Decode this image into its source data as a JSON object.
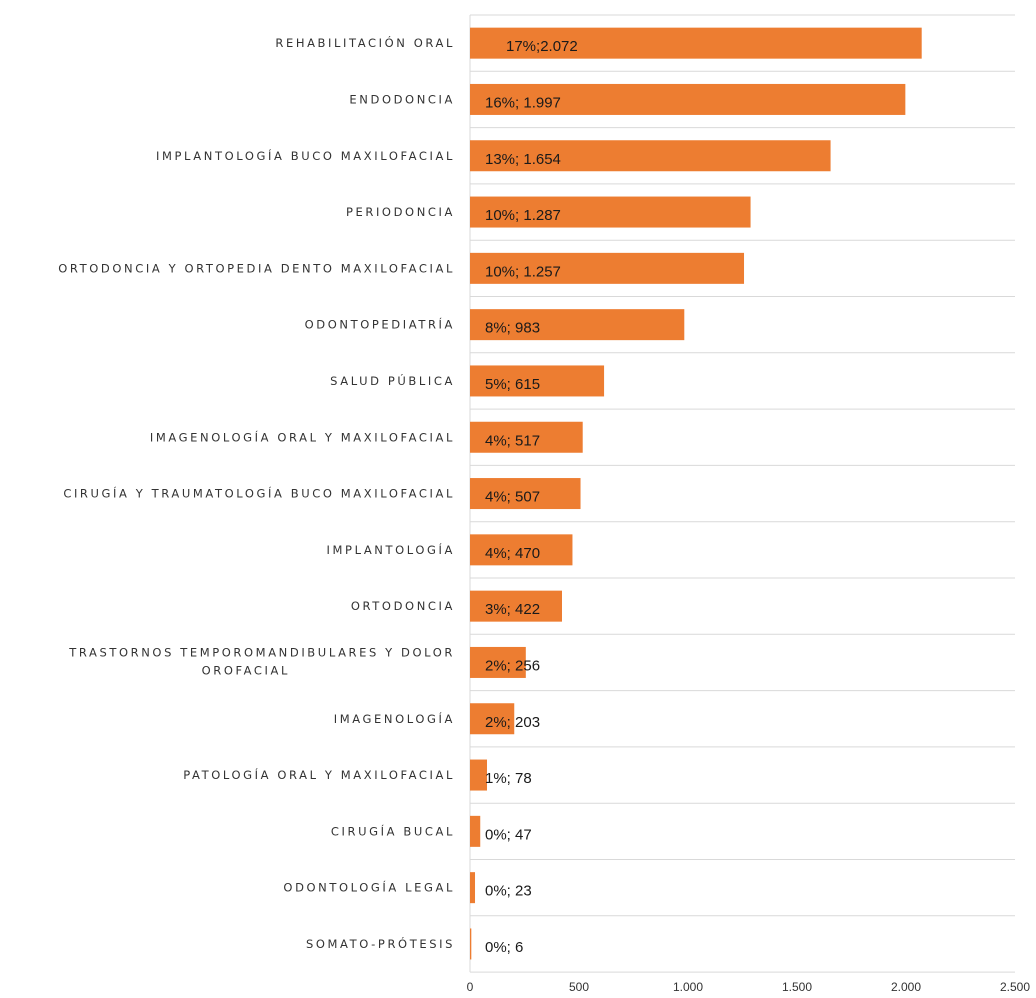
{
  "chart_data": {
    "type": "bar",
    "orientation": "horizontal",
    "title": "",
    "xlabel": "",
    "ylabel": "",
    "xlim": [
      0,
      2500
    ],
    "x_ticks": [
      0,
      500,
      1000,
      1500,
      2000,
      2500
    ],
    "x_tick_labels": [
      "0",
      "500",
      "1.000",
      "1.500",
      "2.000",
      "2.500"
    ],
    "grid": "horizontal",
    "legend": "none",
    "bar_color": "#ED7D31",
    "categories": [
      [
        "REHABILITACIÓN  ORAL"
      ],
      [
        "ENDODONCIA"
      ],
      [
        "IMPLANTOLOGÍA  BUCO MAXILOFACIAL"
      ],
      [
        "PERIODONCIA"
      ],
      [
        "ORTODONCIA Y ORTOPEDIA DENTO  MAXILOFACIAL"
      ],
      [
        "ODONTOPEDIATRÍA"
      ],
      [
        "SALUD  PÚBLICA"
      ],
      [
        "IMAGENOLOGÍA  ORAL Y MAXILOFACIAL"
      ],
      [
        "CIRUGÍA Y TRAUMATOLOGÍA BUCO MAXILOFACIAL"
      ],
      [
        "IMPLANTOLOGÍA"
      ],
      [
        "ORTODONCIA"
      ],
      [
        "TRASTORNOS TEMPOROMANDIBULARES  Y DOLOR",
        "OROFACIAL"
      ],
      [
        "IMAGENOLOGÍA"
      ],
      [
        "PATOLOGÍA ORAL Y MAXILOFACIAL"
      ],
      [
        "CIRUGÍA BUCAL"
      ],
      [
        "ODONTOLOGÍA LEGAL"
      ],
      [
        "SOMATO-PRÓTESIS"
      ]
    ],
    "values": [
      2072,
      1997,
      1654,
      1287,
      1257,
      983,
      615,
      517,
      507,
      470,
      422,
      256,
      203,
      78,
      47,
      23,
      6
    ],
    "data_labels": [
      "17%;2.072",
      "16%; 1.997",
      "13%; 1.654",
      "10%; 1.287",
      "10%; 1.257",
      "8%; 983",
      "5%; 615",
      "4%; 517",
      "4%; 507",
      "4%; 470",
      "3%; 422",
      "2%; 256",
      "2%; 203",
      "1%; 78",
      "0%; 47",
      "0%; 23",
      "0%; 6"
    ]
  }
}
